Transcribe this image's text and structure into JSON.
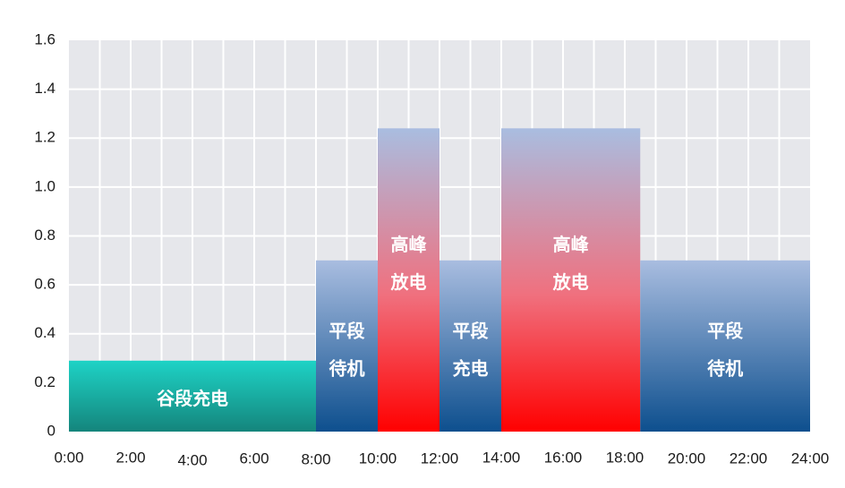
{
  "chart_data": {
    "type": "bar",
    "xlim": [
      0,
      24
    ],
    "ylim": [
      0,
      1.6
    ],
    "grid": true,
    "x_ticks": [
      {
        "value": 0,
        "label": "0:00"
      },
      {
        "value": 2,
        "label": "2:00"
      },
      {
        "value": 4,
        "label": "4:00"
      },
      {
        "value": 6,
        "label": "6:00"
      },
      {
        "value": 8,
        "label": "8:00"
      },
      {
        "value": 10,
        "label": "10:00"
      },
      {
        "value": 12,
        "label": "12:00"
      },
      {
        "value": 14,
        "label": "14:00"
      },
      {
        "value": 16,
        "label": "16:00"
      },
      {
        "value": 18,
        "label": "18:00"
      },
      {
        "value": 20,
        "label": "20:00"
      },
      {
        "value": 22,
        "label": "22:00"
      },
      {
        "value": 24,
        "label": "24:00"
      }
    ],
    "y_ticks": [
      {
        "value": 0,
        "label": "0"
      },
      {
        "value": 0.2,
        "label": "0.2"
      },
      {
        "value": 0.4,
        "label": "0.4"
      },
      {
        "value": 0.6,
        "label": "0.6"
      },
      {
        "value": 0.8,
        "label": "0.8"
      },
      {
        "value": 1.0,
        "label": "1.0"
      },
      {
        "value": 1.2,
        "label": "1.2"
      },
      {
        "value": 1.4,
        "label": "1.4"
      },
      {
        "value": 1.6,
        "label": "1.6"
      }
    ],
    "segments": [
      {
        "start": 0,
        "end": 8,
        "value": 0.29,
        "style": "valley",
        "label": [
          "谷段充电"
        ]
      },
      {
        "start": 8,
        "end": 10,
        "value": 0.7,
        "style": "flat",
        "label": [
          "平段",
          "待机"
        ]
      },
      {
        "start": 10,
        "end": 12,
        "value": 1.24,
        "style": "peak",
        "label": [
          "高峰",
          "放电"
        ]
      },
      {
        "start": 12,
        "end": 14,
        "value": 0.7,
        "style": "flat",
        "label": [
          "平段",
          "充电"
        ]
      },
      {
        "start": 14,
        "end": 18.5,
        "value": 1.24,
        "style": "peak",
        "label": [
          "高峰",
          "放电"
        ]
      },
      {
        "start": 18.5,
        "end": 24,
        "value": 0.7,
        "style": "flat",
        "label": [
          "平段",
          "待机"
        ]
      }
    ],
    "colors": {
      "plot_background": "#e6e7eb",
      "grid": "#ffffff",
      "valley_top": "#1ed3c6",
      "valley_bottom": "#14857c",
      "flat_top": "#a9bde0",
      "flat_bottom": "#0d4f8e",
      "peak_top": "#a9bde0",
      "peak_bottom": "#ff0000"
    }
  }
}
